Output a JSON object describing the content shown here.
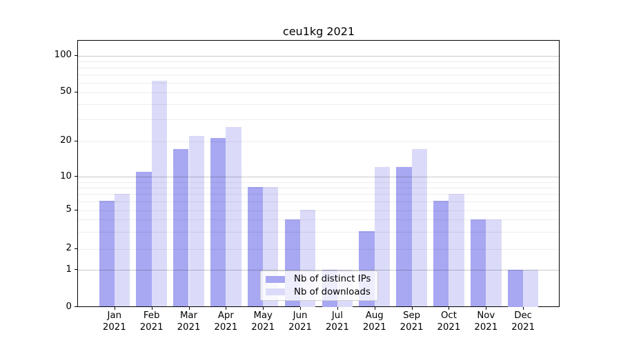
{
  "chart_data": {
    "type": "bar",
    "title": "ceu1kg 2021",
    "categories": [
      "Jan",
      "Feb",
      "Mar",
      "Apr",
      "May",
      "Jun",
      "Jul",
      "Aug",
      "Sep",
      "Oct",
      "Nov",
      "Dec"
    ],
    "year_label": "2021",
    "series": [
      {
        "name": "Nb of distinct IPs",
        "color": "#a7a7f2",
        "values": [
          6,
          11,
          17,
          21,
          8,
          4,
          1,
          3,
          12,
          6,
          4,
          1
        ]
      },
      {
        "name": "Nb of downloads",
        "color": "#dbdbf9",
        "values": [
          7,
          62,
          22,
          26,
          8,
          5,
          1,
          12,
          17,
          7,
          4,
          1
        ]
      }
    ],
    "yscale": "log",
    "ytick_values": [
      0,
      1,
      2,
      5,
      10,
      20,
      50,
      100
    ],
    "ytick_labels": [
      "0",
      "1",
      "2",
      "5",
      "10",
      "20",
      "50",
      "100"
    ],
    "ylim_top": 130,
    "xlabel": "",
    "ylabel": "",
    "grid": true,
    "legend_position": "lower center"
  }
}
